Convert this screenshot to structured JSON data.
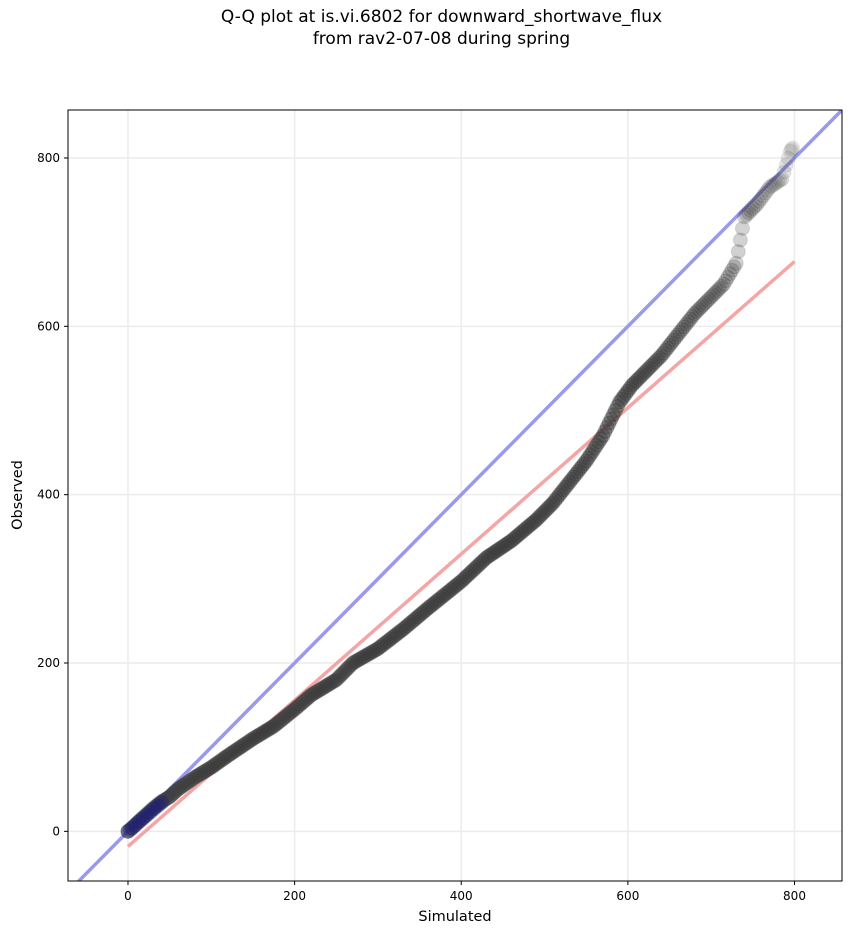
{
  "title": {
    "line1": "Q-Q plot at is.vi.6802 for downward_shortwave_flux",
    "line2": "from rav2-07-08 during spring"
  },
  "chart_data": {
    "type": "scatter",
    "xlabel": "Simulated",
    "ylabel": "Observed",
    "xlim": [
      -72,
      857
    ],
    "ylim": [
      -59,
      857
    ],
    "xticks": [
      0,
      200,
      400,
      600,
      800
    ],
    "yticks": [
      0,
      200,
      400,
      600,
      800
    ],
    "grid": true,
    "colors": {
      "points": "#3a3a3a",
      "identity_line": "#9999ee",
      "fit_line": "#f4a6a6",
      "low_points": "#1a1a80"
    },
    "reference_lines": [
      {
        "kind": "identity",
        "points": [
          [
            -72,
            -72
          ],
          [
            857,
            857
          ]
        ]
      },
      {
        "kind": "fit",
        "points": [
          [
            0,
            -18
          ],
          [
            800,
            677
          ]
        ]
      }
    ],
    "quantile_curve": [
      [
        0,
        0
      ],
      [
        5,
        4
      ],
      [
        10,
        9
      ],
      [
        20,
        18
      ],
      [
        30,
        27
      ],
      [
        40,
        35
      ],
      [
        50,
        41
      ],
      [
        60,
        50
      ],
      [
        80,
        64
      ],
      [
        100,
        76
      ],
      [
        120,
        90
      ],
      [
        150,
        110
      ],
      [
        175,
        125
      ],
      [
        200,
        145
      ],
      [
        220,
        162
      ],
      [
        250,
        180
      ],
      [
        270,
        200
      ],
      [
        300,
        217
      ],
      [
        330,
        240
      ],
      [
        360,
        265
      ],
      [
        400,
        297
      ],
      [
        430,
        325
      ],
      [
        460,
        345
      ],
      [
        490,
        370
      ],
      [
        510,
        390
      ],
      [
        530,
        415
      ],
      [
        550,
        440
      ],
      [
        570,
        470
      ],
      [
        590,
        510
      ],
      [
        605,
        530
      ],
      [
        620,
        545
      ],
      [
        640,
        565
      ],
      [
        660,
        590
      ],
      [
        680,
        615
      ],
      [
        700,
        635
      ],
      [
        715,
        650
      ],
      [
        730,
        675
      ],
      [
        740,
        730
      ],
      [
        755,
        745
      ],
      [
        770,
        765
      ],
      [
        785,
        775
      ],
      [
        795,
        808
      ],
      [
        798,
        812
      ]
    ]
  }
}
